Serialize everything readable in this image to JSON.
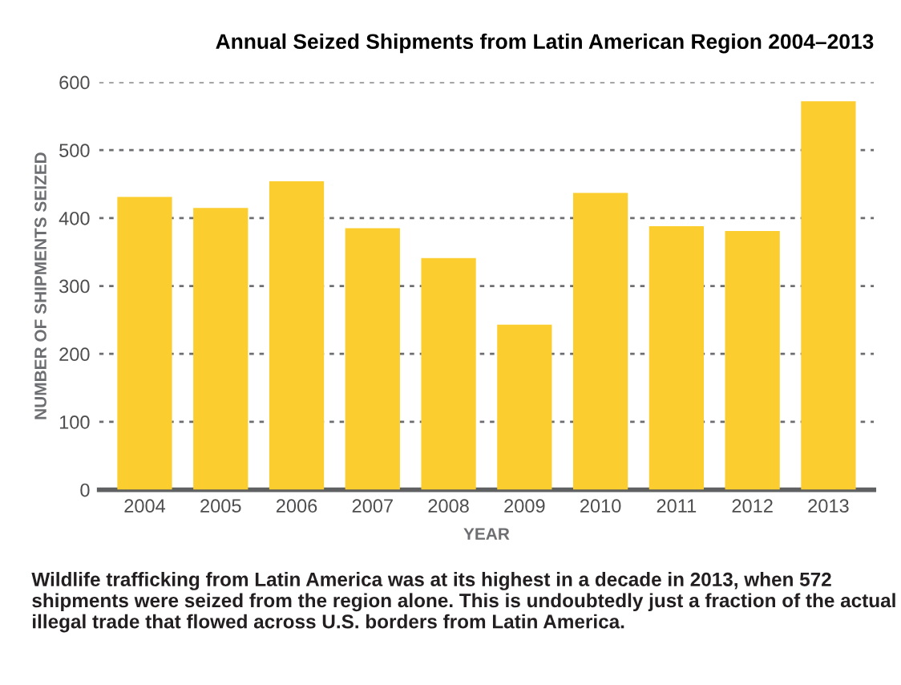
{
  "chart_data": {
    "type": "bar",
    "title": "Annual Seized Shipments from Latin American Region 2004–2013",
    "xlabel": "YEAR",
    "ylabel": "NUMBER OF SHIPMENTS SEIZED",
    "categories": [
      "2004",
      "2005",
      "2006",
      "2007",
      "2008",
      "2009",
      "2010",
      "2011",
      "2012",
      "2013"
    ],
    "values": [
      431,
      415,
      454,
      385,
      341,
      243,
      437,
      388,
      381,
      572
    ],
    "color": "#fbcd2f",
    "ylim": [
      0,
      600
    ],
    "yticks": [
      0,
      100,
      200,
      300,
      400,
      500,
      600
    ],
    "grid": "y",
    "annotations": [
      "Wildlife trafficking from Latin America was at its highest in a decade in 2013, when 572 shipments were seized from the region alone. This is undoubtedly just a fraction of the actual illegal trade that flowed across U.S. borders from Latin America."
    ]
  }
}
